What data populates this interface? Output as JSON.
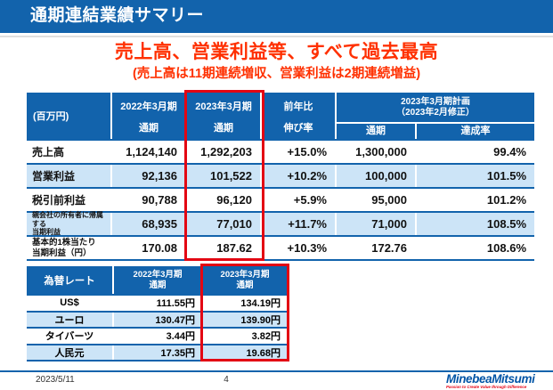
{
  "title_bar": {
    "title": "通期連結業績サマリー"
  },
  "headline": {
    "line1": "売上高、営業利益等、すべて過去最高",
    "line2": "(売上高は11期連続増収、営業利益は2期連続増益)"
  },
  "colors": {
    "primary_blue": "#1263AC",
    "row_light_blue": "#CCE4F7",
    "highlight_red": "#E30613",
    "headline_red": "#FF3000",
    "logo_blue": "#0054A6",
    "logo_red": "#E60012"
  },
  "main_table": {
    "unit": "(百万円)",
    "columns": {
      "fy2022": {
        "line1": "2022年3月期",
        "line2": "通期"
      },
      "fy2023": {
        "line1": "2023年3月期",
        "line2": "通期"
      },
      "yoy": {
        "line1": "前年比",
        "line2": "伸び率"
      },
      "plan": {
        "line1": "2023年3月期計画",
        "line2": "（2023年2月修正）",
        "sub1": "通期",
        "sub2": "達成率"
      }
    },
    "rows": [
      {
        "label1": "売上高",
        "fy2022": "1,124,140",
        "fy2023": "1,292,203",
        "yoy": "+15.0%",
        "plan": "1,300,000",
        "ach": "99.4%"
      },
      {
        "label1": "営業利益",
        "fy2022": "92,136",
        "fy2023": "101,522",
        "yoy": "+10.2%",
        "plan": "100,000",
        "ach": "101.5%"
      },
      {
        "label1": "税引前利益",
        "fy2022": "90,788",
        "fy2023": "96,120",
        "yoy": "+5.9%",
        "plan": "95,000",
        "ach": "101.2%"
      },
      {
        "label1": "親会社の所有者に帰属する",
        "label2": "当期利益",
        "fy2022": "68,935",
        "fy2023": "77,010",
        "yoy": "+11.7%",
        "plan": "71,000",
        "ach": "108.5%"
      },
      {
        "label1": "基本的1株当たり",
        "label2": "当期利益（円）",
        "fy2022": "170.08",
        "fy2023": "187.62",
        "yoy": "+10.3%",
        "plan": "172.76",
        "ach": "108.6%"
      }
    ]
  },
  "fx_table": {
    "header": {
      "label": "為替レート",
      "fy2022_line1": "2022年3月期",
      "fy2022_line2": "通期",
      "fy2023_line1": "2023年3月期",
      "fy2023_line2": "通期"
    },
    "rows": [
      {
        "label": "US$",
        "fy2022": "111.55円",
        "fy2023": "134.19円"
      },
      {
        "label": "ユーロ",
        "fy2022": "130.47円",
        "fy2023": "139.90円"
      },
      {
        "label": "タイバーツ",
        "fy2022": "3.44円",
        "fy2023": "3.82円"
      },
      {
        "label": "人民元",
        "fy2022": "17.35円",
        "fy2023": "19.68円"
      }
    ]
  },
  "footer": {
    "date": "2023/5/11",
    "page": "4",
    "logo": "MinebeaMitsumi",
    "tagline": "Passion to Create Value through Difference"
  }
}
